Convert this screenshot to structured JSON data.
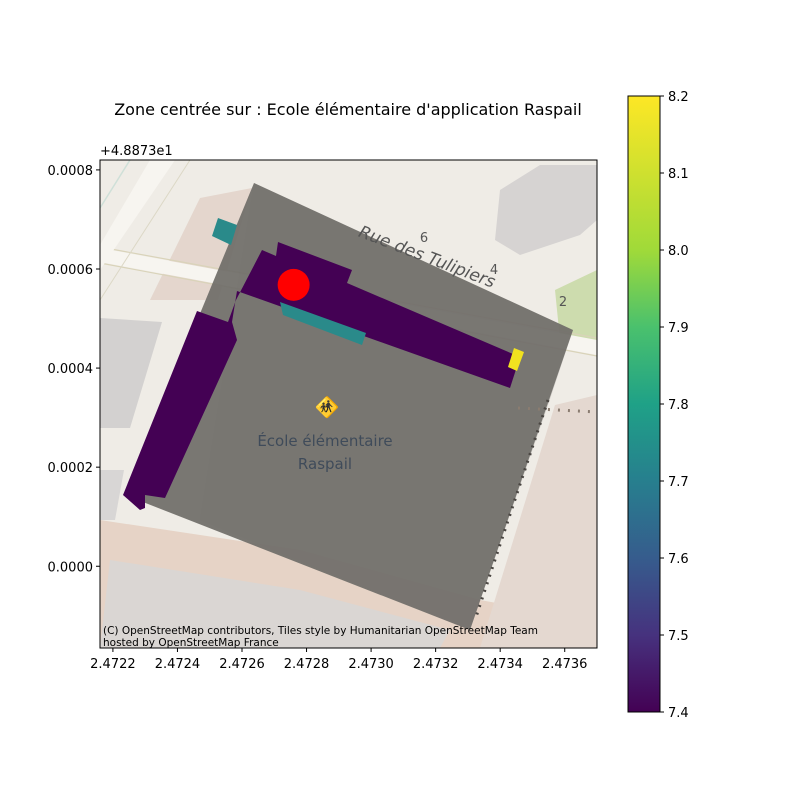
{
  "title": "Zone centrée sur : Ecole élémentaire d'application Raspail",
  "axes": {
    "y_offset_label": "+4.8873e1",
    "x_ticks": [
      "2.4722",
      "2.4724",
      "2.4726",
      "2.4728",
      "2.4730",
      "2.4732",
      "2.4734",
      "2.4736"
    ],
    "x_tick_values": [
      2.4722,
      2.4724,
      2.4726,
      2.4728,
      2.473,
      2.4732,
      2.4734,
      2.4736
    ],
    "y_ticks": [
      "0.0000",
      "0.0002",
      "0.0004",
      "0.0006",
      "0.0008"
    ],
    "y_tick_values": [
      0.0,
      0.0002,
      0.0004,
      0.0006,
      0.0008
    ],
    "xlim": [
      2.47216,
      2.4737
    ],
    "ylim": [
      -0.000165,
      0.00082
    ]
  },
  "map_labels": {
    "street": "Rue des Tulipiers",
    "house_numbers": [
      "6",
      "4",
      "2"
    ],
    "school_line1": "École élémentaire",
    "school_line2": "Raspail"
  },
  "attribution_line1": "(C) OpenStreetMap contributors, Tiles style by Humanitarian OpenStreetMap Team",
  "attribution_line2": "hosted by OpenStreetMap France",
  "colorbar": {
    "ticks": [
      "7.4",
      "7.5",
      "7.6",
      "7.7",
      "7.8",
      "7.9",
      "8.0",
      "8.1",
      "8.2"
    ],
    "tick_values": [
      7.4,
      7.5,
      7.6,
      7.7,
      7.8,
      7.9,
      8.0,
      8.1,
      8.2
    ],
    "range": [
      7.4,
      8.2
    ],
    "colormap": "viridis"
  },
  "marker": {
    "lon": 2.47276,
    "lat_offset": 0.000568,
    "color": "#ff0000"
  },
  "colors": {
    "outline_gray": "#6f6c68",
    "building_value_low": "#440154",
    "building_value_mid": "#2a8a8a",
    "building_value_high": "#f1e21f"
  }
}
